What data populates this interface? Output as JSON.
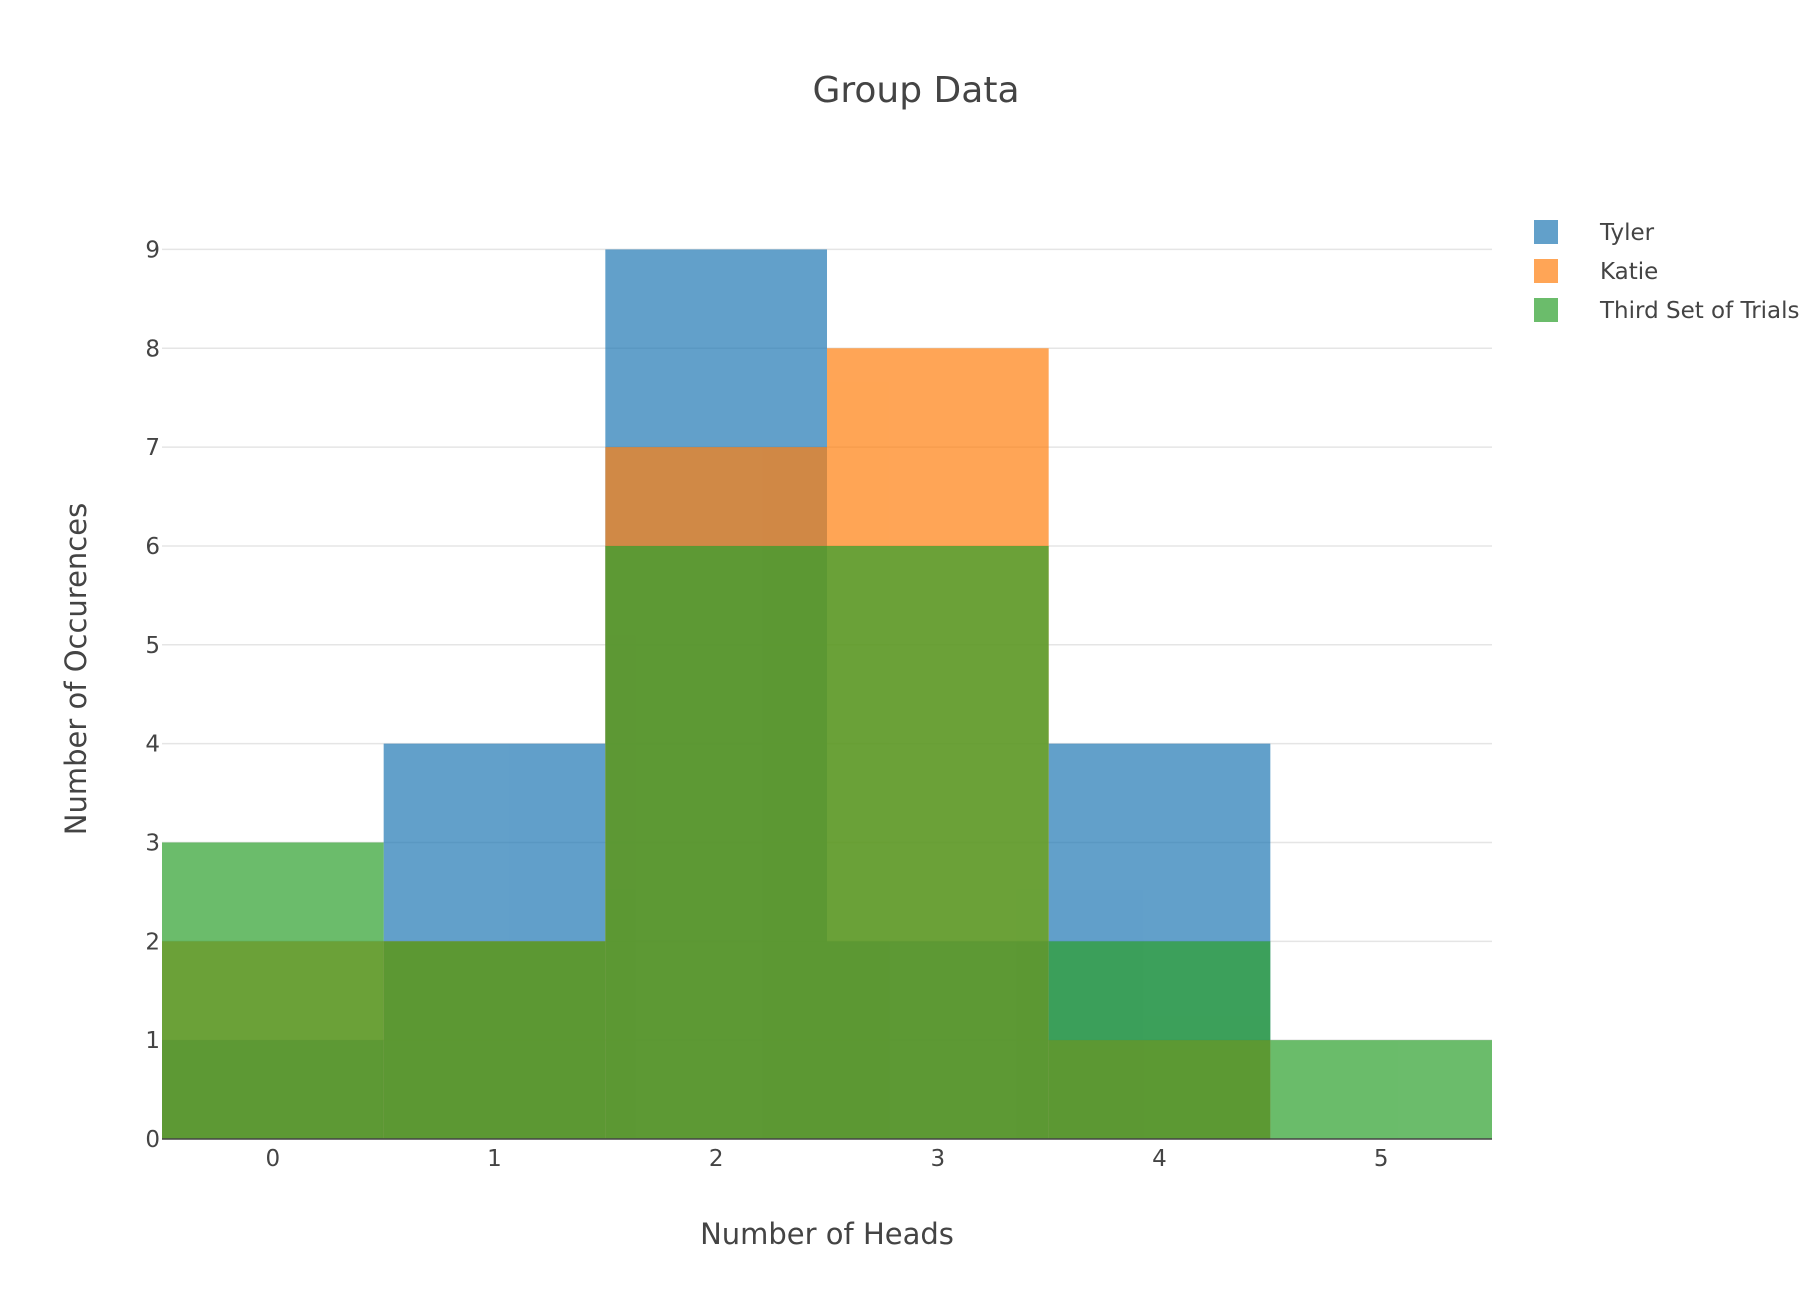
{
  "chart_data": {
    "type": "bar",
    "barmode": "overlay",
    "title": "Group Data",
    "xlabel": "Number of Heads",
    "ylabel": "Number of Occurences",
    "x": [
      0,
      1,
      2,
      3,
      4,
      5
    ],
    "xticks": [
      "0",
      "1",
      "2",
      "3",
      "4",
      "5"
    ],
    "yticks": [
      "0",
      "1",
      "2",
      "3",
      "4",
      "5",
      "6",
      "7",
      "8",
      "9"
    ],
    "xlim": [
      -0.5,
      5.5
    ],
    "ylim": [
      0,
      9.5
    ],
    "grid": true,
    "legend_position": "top-right",
    "series": [
      {
        "name": "Tyler",
        "color": "#1f77b4",
        "values": [
          1,
          4,
          9,
          2,
          4,
          0
        ]
      },
      {
        "name": "Katie",
        "color": "#ff7f0e",
        "values": [
          2,
          2,
          7,
          8,
          1,
          0
        ]
      },
      {
        "name": "Third Set of Trials",
        "color": "#2ca02c",
        "values": [
          3,
          2,
          6,
          6,
          2,
          1
        ]
      }
    ]
  }
}
